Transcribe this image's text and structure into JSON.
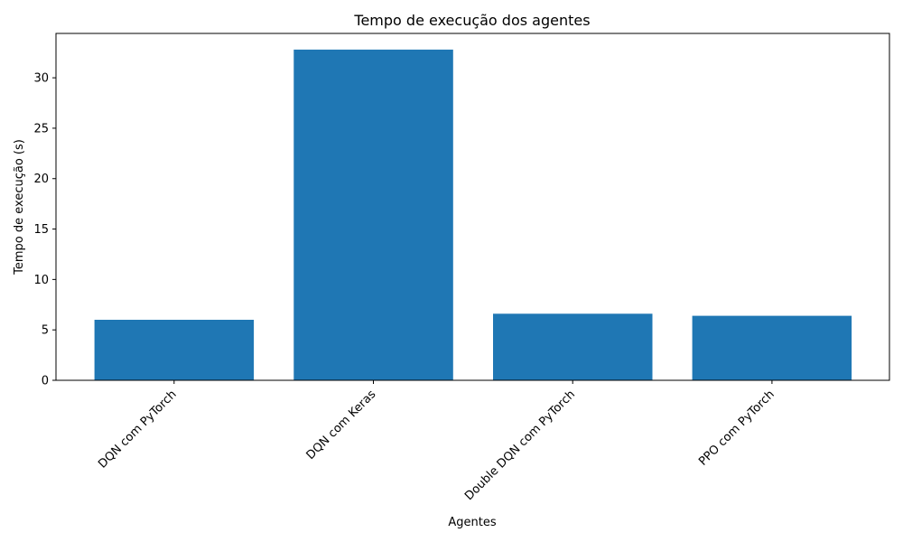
{
  "chart_data": {
    "type": "bar",
    "title": "Tempo de execução dos agentes",
    "xlabel": "Agentes",
    "ylabel": "Tempo de execução (s)",
    "categories": [
      "DQN com PyTorch",
      "DQN com Keras",
      "Double DQN com PyTorch",
      "PPO com PyTorch"
    ],
    "values": [
      6.0,
      32.8,
      6.6,
      6.4
    ],
    "ylim": [
      0,
      34.4
    ],
    "yticks": [
      0,
      5,
      10,
      15,
      20,
      25,
      30
    ],
    "grid": false,
    "bar_color": "#1f77b4"
  }
}
